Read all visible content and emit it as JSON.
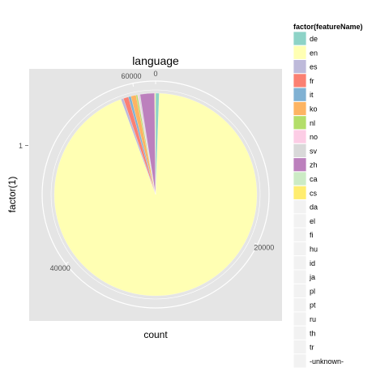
{
  "chart_data": {
    "type": "pie",
    "title": "language",
    "xlabel": "count",
    "ylabel": "factor(1)",
    "y_tick_label": "1",
    "radial_ticks": [
      0,
      20000,
      40000,
      60000
    ],
    "radial_max": 62000,
    "legend_title": "factor(featureName)",
    "legend_position": "right",
    "grid": true,
    "slices": [
      {
        "name": "de",
        "value": 350,
        "color": "#8DD3C7"
      },
      {
        "name": "en",
        "value": 57500,
        "color": "#FFFFB3"
      },
      {
        "name": "es",
        "value": 250,
        "color": "#BEBADA"
      },
      {
        "name": "fr",
        "value": 500,
        "color": "#FB8072"
      },
      {
        "name": "it",
        "value": 250,
        "color": "#80B1D3"
      },
      {
        "name": "ko",
        "value": 500,
        "color": "#FDB462"
      },
      {
        "name": "nl",
        "value": 150,
        "color": "#B3DE69"
      },
      {
        "name": "no",
        "value": 100,
        "color": "#FCCDE5"
      },
      {
        "name": "sv",
        "value": 150,
        "color": "#D9D9D9"
      },
      {
        "name": "zh",
        "value": 1400,
        "color": "#BC80BD"
      },
      {
        "name": "ca",
        "value": 50,
        "color": "#CCEBC5"
      },
      {
        "name": "cs",
        "value": 50,
        "color": "#FFED6F"
      },
      {
        "name": "da",
        "value": 0,
        "color": "#F2F2F2"
      },
      {
        "name": "el",
        "value": 0,
        "color": "#F2F2F2"
      },
      {
        "name": "fi",
        "value": 0,
        "color": "#F2F2F2"
      },
      {
        "name": "hu",
        "value": 0,
        "color": "#F2F2F2"
      },
      {
        "name": "id",
        "value": 0,
        "color": "#F2F2F2"
      },
      {
        "name": "ja",
        "value": 0,
        "color": "#F2F2F2"
      },
      {
        "name": "pl",
        "value": 0,
        "color": "#F2F2F2"
      },
      {
        "name": "pt",
        "value": 0,
        "color": "#F2F2F2"
      },
      {
        "name": "ru",
        "value": 0,
        "color": "#F2F2F2"
      },
      {
        "name": "th",
        "value": 0,
        "color": "#F2F2F2"
      },
      {
        "name": "tr",
        "value": 0,
        "color": "#F2F2F2"
      },
      {
        "name": "-unknown-",
        "value": 0,
        "color": "#F2F2F2"
      }
    ]
  }
}
